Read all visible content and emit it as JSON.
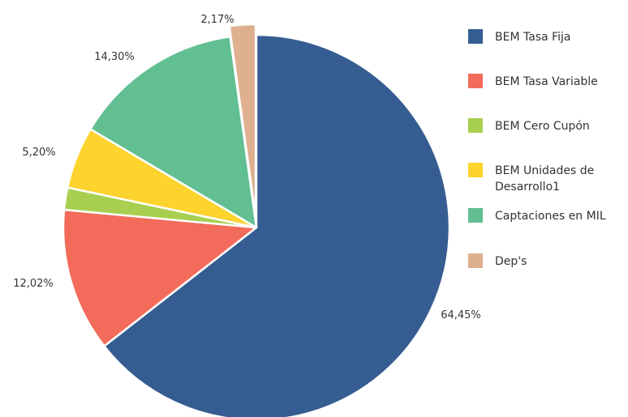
{
  "chart_data": {
    "type": "pie",
    "title": "",
    "series": [
      {
        "name": "BEM Tasa Fija",
        "value": 64.45,
        "label": "64,45%",
        "color": "#355d91"
      },
      {
        "name": "BEM Tasa Variable",
        "value": 12.02,
        "label": "12,02%",
        "color": "#f26b5b"
      },
      {
        "name": "BEM Cero Cupón",
        "value": 1.86,
        "label": "",
        "color": "#a8cf4f"
      },
      {
        "name": "BEM Unidades de Desarrollo1",
        "value": 5.2,
        "label": "5,20%",
        "color": "#fdd32d"
      },
      {
        "name": "Captaciones en MIL",
        "value": 14.3,
        "label": "14,30%",
        "color": "#62bf92"
      },
      {
        "name": "Dep's",
        "value": 2.17,
        "label": "2,17%",
        "color": "#deb08f"
      }
    ],
    "legend": {
      "position": "right",
      "items": [
        {
          "lines": [
            "BEM Tasa Fija"
          ],
          "color": "#355d91"
        },
        {
          "lines": [
            "BEM Tasa Variable"
          ],
          "color": "#f26b5b"
        },
        {
          "lines": [
            "BEM Cero Cupón"
          ],
          "color": "#a8cf4f"
        },
        {
          "lines": [
            "BEM Unidades de",
            "Desarrollo1"
          ],
          "color": "#fdd32d"
        },
        {
          "lines": [
            "Captaciones en MIL"
          ],
          "color": "#62bf92"
        },
        {
          "lines": [
            "Dep's"
          ],
          "color": "#deb08f"
        }
      ]
    },
    "exploded_slice": "Dep's"
  }
}
